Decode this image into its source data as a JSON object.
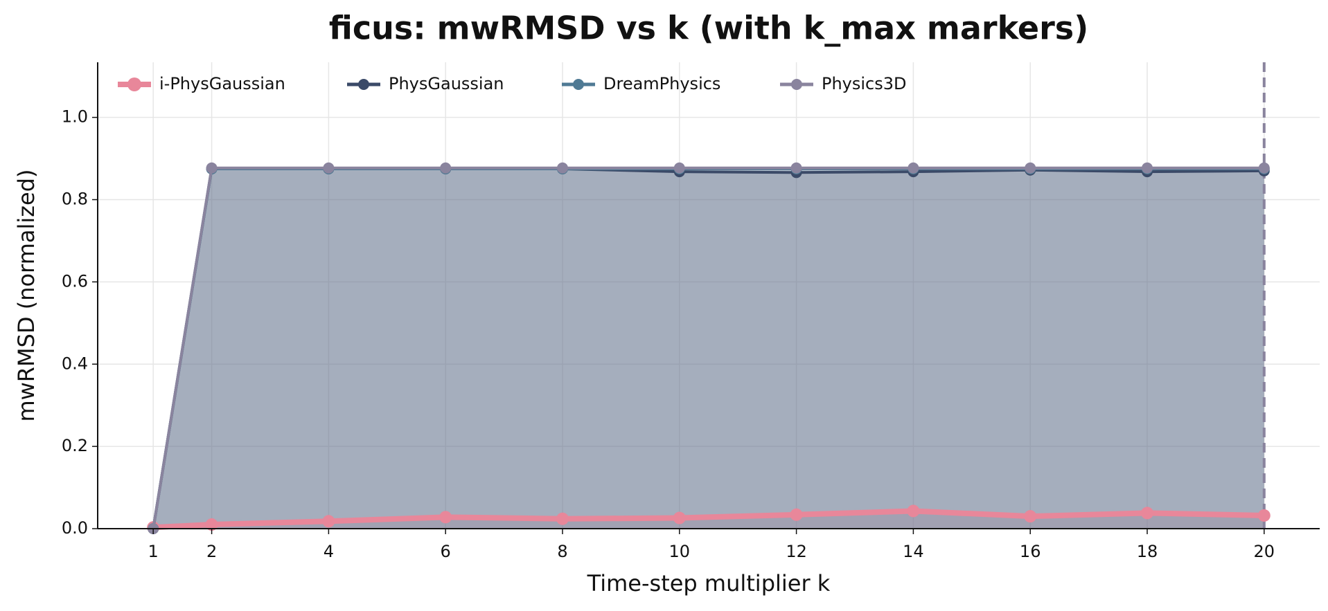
{
  "chart_data": {
    "type": "line",
    "title": "ficus: mwRMSD vs k (with k_max markers)",
    "x_label": "Time-step multiplier  k",
    "y_label": "mwRMSD (normalized)",
    "x": [
      1,
      2,
      4,
      6,
      8,
      10,
      12,
      14,
      16,
      18,
      20
    ],
    "series": [
      {
        "name": "i-PhysGaussian",
        "color": "#e8879a",
        "values": [
          0.003,
          0.01,
          0.018,
          0.028,
          0.024,
          0.026,
          0.034,
          0.043,
          0.03,
          0.038,
          0.032
        ]
      },
      {
        "name": "PhysGaussian",
        "color": "#3b4a68",
        "values": [
          0,
          0.875,
          0.875,
          0.875,
          0.875,
          0.868,
          0.866,
          0.868,
          0.872,
          0.868,
          0.87
        ]
      },
      {
        "name": "DreamPhysics",
        "color": "#4f7a94",
        "values": [
          0,
          0.875,
          0.875,
          0.875,
          0.875,
          0.875,
          0.875,
          0.875,
          0.875,
          0.875,
          0.875
        ]
      },
      {
        "name": "Physics3D",
        "color": "#8a849e",
        "values": [
          0,
          0.877,
          0.877,
          0.877,
          0.877,
          0.877,
          0.877,
          0.877,
          0.877,
          0.877,
          0.877
        ]
      }
    ],
    "k_max_markers": [
      {
        "x": 20,
        "color": "#8a849e"
      }
    ],
    "xlim": [
      0.05,
      20.95
    ],
    "ylim": [
      0,
      1.134
    ],
    "xticks": [
      1,
      2,
      4,
      6,
      8,
      10,
      12,
      14,
      16,
      18,
      20
    ],
    "yticks": [
      {
        "value": 0,
        "label": "0.0"
      },
      0.2,
      0.4,
      0.6,
      0.8,
      {
        "value": 1,
        "label": "1.0"
      }
    ],
    "grid": true,
    "fill_under": true,
    "legend_position": "upper left"
  }
}
